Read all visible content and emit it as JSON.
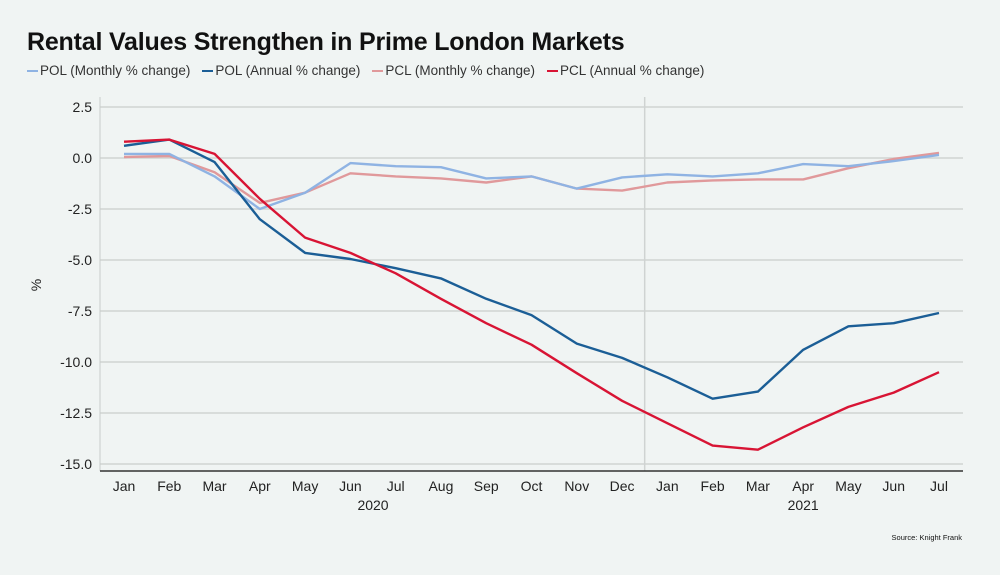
{
  "chart_data": {
    "type": "line",
    "title": "Rental Values Strengthen in Prime London Markets",
    "xlabel": "",
    "ylabel": "%",
    "ylim": [
      -15.0,
      2.5
    ],
    "yticks": [
      2.5,
      0.0,
      -2.5,
      -5.0,
      -7.5,
      -10.0,
      -12.5,
      -15.0
    ],
    "ytick_labels": [
      "2.5",
      "0.0",
      "-2.5",
      "-5.0",
      "-7.5",
      "-10.0",
      "-12.5",
      "-15.0"
    ],
    "grid": true,
    "legend_position": "top-left",
    "x": [
      "Jan",
      "Feb",
      "Mar",
      "Apr",
      "May",
      "Jun",
      "Jul",
      "Aug",
      "Sep",
      "Oct",
      "Nov",
      "Dec",
      "Jan",
      "Feb",
      "Mar",
      "Apr",
      "May",
      "Jun",
      "Jul"
    ],
    "year_groups": [
      {
        "label": "2020",
        "start": 0,
        "end": 11
      },
      {
        "label": "2021",
        "start": 12,
        "end": 18
      }
    ],
    "series": [
      {
        "name": "POL (Monthly % change)",
        "color": "#8fb3e3",
        "values": [
          0.2,
          0.2,
          -0.9,
          -2.5,
          -1.7,
          -0.25,
          -0.4,
          -0.45,
          -1.0,
          -0.9,
          -1.5,
          -0.95,
          -0.8,
          -0.9,
          -0.75,
          -0.3,
          -0.4,
          -0.15,
          0.15
        ]
      },
      {
        "name": "POL (Annual % change)",
        "color": "#1b5e96",
        "values": [
          0.6,
          0.9,
          -0.2,
          -3.0,
          -4.65,
          -4.95,
          -5.4,
          -5.9,
          -6.9,
          -7.7,
          -9.1,
          -9.8,
          -10.75,
          -11.8,
          -11.45,
          -9.4,
          -8.25,
          -8.1,
          -7.6
        ]
      },
      {
        "name": "PCL (Monthly % change)",
        "color": "#e0999b",
        "values": [
          0.05,
          0.1,
          -0.7,
          -2.2,
          -1.7,
          -0.75,
          -0.9,
          -1.0,
          -1.2,
          -0.9,
          -1.5,
          -1.6,
          -1.2,
          -1.1,
          -1.05,
          -1.05,
          -0.5,
          -0.05,
          0.25
        ]
      },
      {
        "name": "PCL (Annual % change)",
        "color": "#d81434",
        "values": [
          0.8,
          0.9,
          0.2,
          -2.0,
          -3.9,
          -4.65,
          -5.65,
          -6.9,
          -8.1,
          -9.15,
          -10.55,
          -11.9,
          -13.0,
          -14.1,
          -14.3,
          -13.2,
          -12.2,
          -11.5,
          -10.5
        ]
      }
    ],
    "source": "Source: Knight Frank"
  }
}
